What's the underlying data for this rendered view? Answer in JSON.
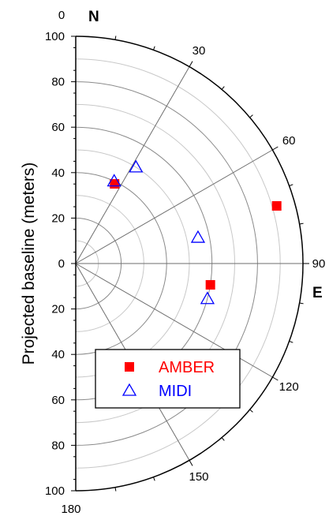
{
  "chart_data": {
    "type": "scatter",
    "coordinate_system": "polar-half",
    "ylabel": "Projected baseline (meters)",
    "radial_range": [
      0,
      100
    ],
    "radial_ticks": [
      "100",
      "80",
      "60",
      "40",
      "20",
      "0",
      "20",
      "40",
      "60",
      "80",
      "100"
    ],
    "angle_range": [
      0,
      180
    ],
    "angle_labels": [
      "0",
      "30",
      "60",
      "90",
      "120",
      "150",
      "180"
    ],
    "direction_labels": {
      "north": "N",
      "east": "E"
    },
    "legend_position": "lower-middle",
    "series": [
      {
        "name": "AMBER",
        "marker": "filled-square",
        "color": "#ff0000",
        "points": [
          {
            "angle": 26,
            "radius": 39
          },
          {
            "angle": 74,
            "radius": 92
          },
          {
            "angle": 99,
            "radius": 60
          }
        ]
      },
      {
        "name": "MIDI",
        "marker": "open-triangle",
        "color": "#0000ff",
        "points": [
          {
            "angle": 32,
            "radius": 50
          },
          {
            "angle": 25,
            "radius": 40
          },
          {
            "angle": 78,
            "radius": 55
          },
          {
            "angle": 105,
            "radius": 60
          }
        ]
      }
    ],
    "grid": true
  }
}
